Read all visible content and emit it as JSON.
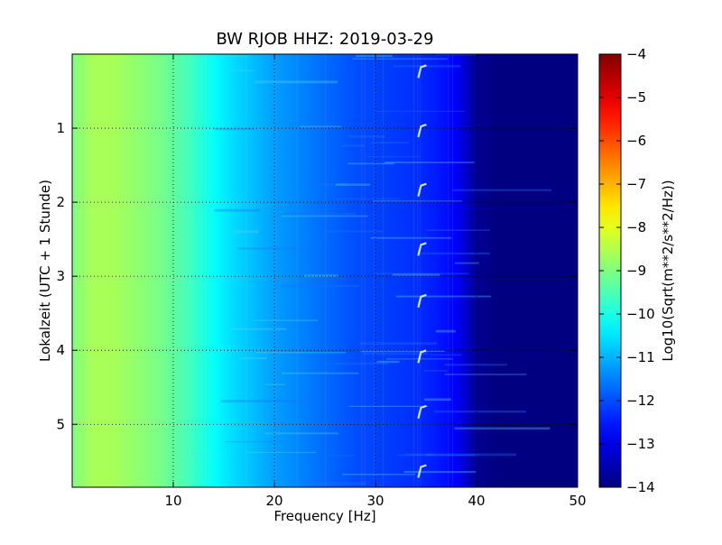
{
  "chart_data": {
    "type": "heatmap",
    "title": "BW RJOB HHZ: 2019-03-29",
    "xlabel": "Frequency [Hz]",
    "ylabel": "Lokalzeit (UTC + 1 Stunde)",
    "xlim": [
      0,
      50
    ],
    "ylim": [
      0,
      5.85
    ],
    "y_inverted": true,
    "grid": true,
    "x_ticks": [
      10,
      20,
      30,
      40,
      50
    ],
    "x_tick_labels": [
      "10",
      "20",
      "30",
      "40",
      "50"
    ],
    "y_ticks": [
      1,
      2,
      3,
      4,
      5
    ],
    "y_tick_labels": [
      "1",
      "2",
      "3",
      "4",
      "5"
    ],
    "colormap": "jet",
    "colorbar": {
      "label": "Log10(Sqrt(m**2/s**2/Hz))",
      "min": -14,
      "max": -4,
      "ticks": [
        -4,
        -5,
        -6,
        -7,
        -8,
        -9,
        -10,
        -11,
        -12,
        -13,
        -14
      ],
      "tick_labels": [
        "−4",
        "−5",
        "−6",
        "−7",
        "−8",
        "−9",
        "−10",
        "−11",
        "−12",
        "−13",
        "−14"
      ]
    },
    "spectrum_profile": {
      "frequency_hz": [
        0,
        2,
        4,
        6,
        8,
        10,
        12,
        14,
        16,
        18,
        20,
        22,
        24,
        26,
        28,
        30,
        32,
        34,
        36,
        38,
        39,
        40,
        42,
        45,
        50
      ],
      "level": [
        -9.0,
        -8.6,
        -8.6,
        -8.8,
        -9.0,
        -9.3,
        -9.7,
        -10.2,
        -10.6,
        -10.9,
        -11.2,
        -11.4,
        -11.6,
        -11.8,
        -12.0,
        -12.1,
        -12.2,
        -12.3,
        -12.5,
        -12.8,
        -13.3,
        -13.8,
        -14.0,
        -14.0,
        -14.0
      ]
    },
    "hourly_feature": {
      "frequency_hz": 34.5,
      "times_h": [
        0.2,
        1.0,
        1.8,
        2.6,
        3.3,
        4.05,
        4.8,
        5.6
      ]
    }
  }
}
